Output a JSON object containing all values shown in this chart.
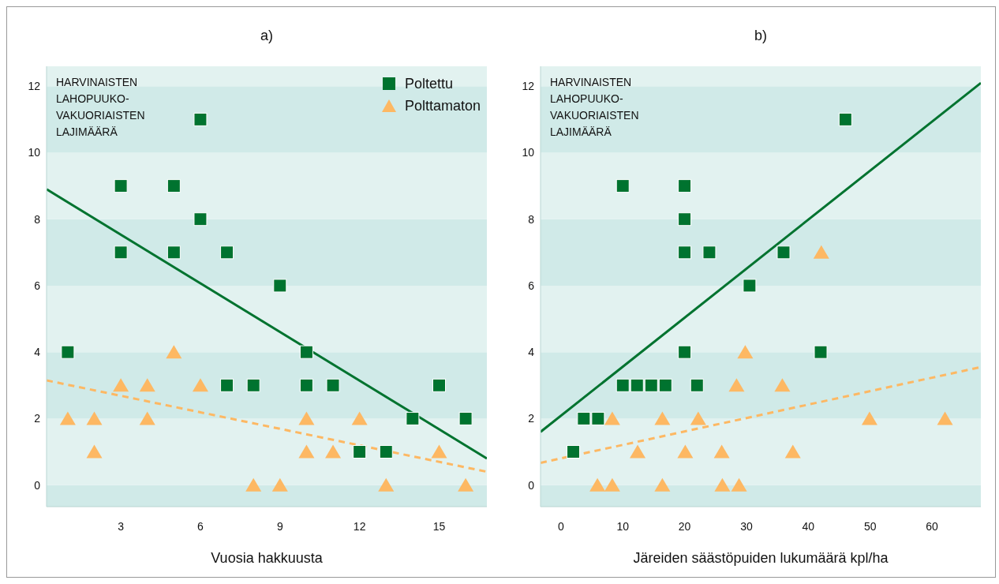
{
  "chart_data": [
    {
      "type": "scatter",
      "title": "a)",
      "xlabel": "Vuosia hakkuusta",
      "ylabel": "HARVINAISTEN\nLAHOPUUKO-\nVAKUORIAISTEN\nLAJIMÄÄRÄ",
      "xlim": [
        0.2,
        16.8
      ],
      "xticks": [
        3,
        6,
        9,
        12,
        15
      ],
      "ylim": [
        -0.65,
        12.6
      ],
      "yticks": [
        0,
        2,
        4,
        6,
        8,
        10,
        12
      ],
      "grid": false,
      "legend": "top right",
      "bands": [
        {
          "axis": "y",
          "from": -0.65,
          "to": 0,
          "color": "#d0eae8"
        },
        {
          "axis": "y",
          "from": 0,
          "to": 2,
          "color": "#e2f2f0"
        },
        {
          "axis": "y",
          "from": 2,
          "to": 4,
          "color": "#d0eae8"
        },
        {
          "axis": "y",
          "from": 4,
          "to": 6,
          "color": "#e2f2f0"
        },
        {
          "axis": "y",
          "from": 6,
          "to": 8,
          "color": "#d0eae8"
        },
        {
          "axis": "y",
          "from": 8,
          "to": 10,
          "color": "#e2f2f0"
        },
        {
          "axis": "y",
          "from": 10,
          "to": 12,
          "color": "#d0eae8"
        },
        {
          "axis": "y",
          "from": 12,
          "to": 12.6,
          "color": "#e2f2f0"
        }
      ],
      "series": [
        {
          "type": "line",
          "color": "#00732f",
          "marker": "none",
          "line_style": "solid",
          "x": [
            0.2,
            16.8
          ],
          "values": [
            8.9,
            0.8
          ]
        },
        {
          "type": "line",
          "color": "#fdb863",
          "marker": "none",
          "line_style": "dashed",
          "x": [
            0.2,
            16.8
          ],
          "values": [
            3.15,
            0.4
          ]
        },
        {
          "name": "Poltettu",
          "type": "scatter",
          "color": "#00732f",
          "marker": "square",
          "x": [
            1,
            3,
            3,
            5,
            5,
            6,
            6,
            7,
            7,
            8,
            9,
            10,
            10,
            11,
            12,
            13,
            14,
            15,
            16
          ],
          "values": [
            4,
            9,
            7,
            9,
            7,
            11,
            8,
            7,
            3,
            3,
            6,
            4,
            3,
            3,
            1,
            1,
            2,
            3,
            2
          ]
        },
        {
          "name": "Polttamaton",
          "type": "scatter",
          "color": "#fdb863",
          "marker": "triangle",
          "x": [
            1,
            2,
            2,
            3,
            4,
            4,
            5,
            6,
            8,
            9,
            10,
            10,
            11,
            12,
            13,
            15,
            16
          ],
          "values": [
            2,
            2,
            1,
            3,
            3,
            2,
            4,
            3,
            0,
            0,
            2,
            1,
            1,
            2,
            0,
            1,
            0
          ]
        }
      ]
    },
    {
      "type": "scatter",
      "title": "b)",
      "xlabel": "Järeiden säästöpuiden lukumäärä kpl/ha",
      "ylabel": "HARVINAISTEN\nLAHOPUUKO-\nVAKUORIAISTEN\nLAJIMÄÄRÄ",
      "xlim": [
        -3.3,
        67.9
      ],
      "xticks": [
        0,
        10,
        20,
        30,
        40,
        50,
        60
      ],
      "ylim": [
        -0.65,
        12.6
      ],
      "yticks": [
        0,
        2,
        4,
        6,
        8,
        10,
        12
      ],
      "grid": false,
      "bands": [
        {
          "axis": "y",
          "from": -0.65,
          "to": 0,
          "color": "#d0eae8"
        },
        {
          "axis": "y",
          "from": 0,
          "to": 2,
          "color": "#e2f2f0"
        },
        {
          "axis": "y",
          "from": 2,
          "to": 4,
          "color": "#d0eae8"
        },
        {
          "axis": "y",
          "from": 4,
          "to": 6,
          "color": "#e2f2f0"
        },
        {
          "axis": "y",
          "from": 6,
          "to": 8,
          "color": "#d0eae8"
        },
        {
          "axis": "y",
          "from": 8,
          "to": 10,
          "color": "#e2f2f0"
        },
        {
          "axis": "y",
          "from": 10,
          "to": 12,
          "color": "#d0eae8"
        },
        {
          "axis": "y",
          "from": 12,
          "to": 12.6,
          "color": "#e2f2f0"
        }
      ],
      "series": [
        {
          "type": "line",
          "color": "#00732f",
          "marker": "none",
          "line_style": "solid",
          "x": [
            -3.3,
            67.9
          ],
          "values": [
            1.6,
            12.1
          ]
        },
        {
          "type": "line",
          "color": "#fdb863",
          "marker": "none",
          "line_style": "dashed",
          "x": [
            -3.3,
            67.9
          ],
          "values": [
            0.67,
            3.55
          ]
        },
        {
          "type": "scatter",
          "color": "#00732f",
          "marker": "square",
          "x": [
            2,
            3.7,
            6,
            10,
            12.3,
            14.6,
            16.9,
            20,
            22,
            30.5,
            42,
            10,
            20,
            20,
            20,
            24,
            36,
            46
          ],
          "values": [
            1,
            2,
            2,
            3,
            3,
            3,
            3,
            4,
            3,
            6,
            4,
            9,
            9,
            8,
            7,
            7,
            7,
            11
          ]
        },
        {
          "type": "scatter",
          "color": "#fdb863",
          "marker": "triangle",
          "x": [
            8.3,
            16.4,
            22.2,
            49.9,
            62.1,
            28.4,
            35.8,
            29.8,
            42.1,
            12.4,
            20.1,
            26,
            37.5,
            5.9,
            8.3,
            16.4,
            26.1,
            28.8
          ],
          "values": [
            2,
            2,
            2,
            2,
            2,
            3,
            3,
            4,
            7,
            1,
            1,
            1,
            1,
            0,
            0,
            0,
            0,
            0
          ]
        }
      ]
    }
  ]
}
